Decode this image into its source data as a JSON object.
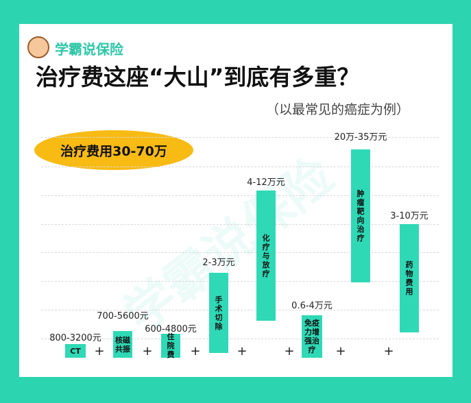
{
  "brand": "学霸说保险",
  "title": "治疗费这座“大山”到底有多重？",
  "subtitle": "（以最常见的癌症为例）",
  "badge": "治疗费用30-70万",
  "watermark": "学霸说保险",
  "plus": "+",
  "items": [
    {
      "label": "CT",
      "range": "800-3200元"
    },
    {
      "label": "核磁共振",
      "range": "700-5600元"
    },
    {
      "label": "住院费",
      "range": "600-4800元"
    },
    {
      "label": "手术切除",
      "range": "2-3万元"
    },
    {
      "label": "化疗与放疗",
      "range": "4-12万元"
    },
    {
      "label": "免疫力增强治疗",
      "range": "0.6-4万元"
    },
    {
      "label": "肿瘤靶向治疗",
      "range": "20万-35万元"
    },
    {
      "label": "药物费用",
      "range": "3-10万元"
    }
  ]
}
